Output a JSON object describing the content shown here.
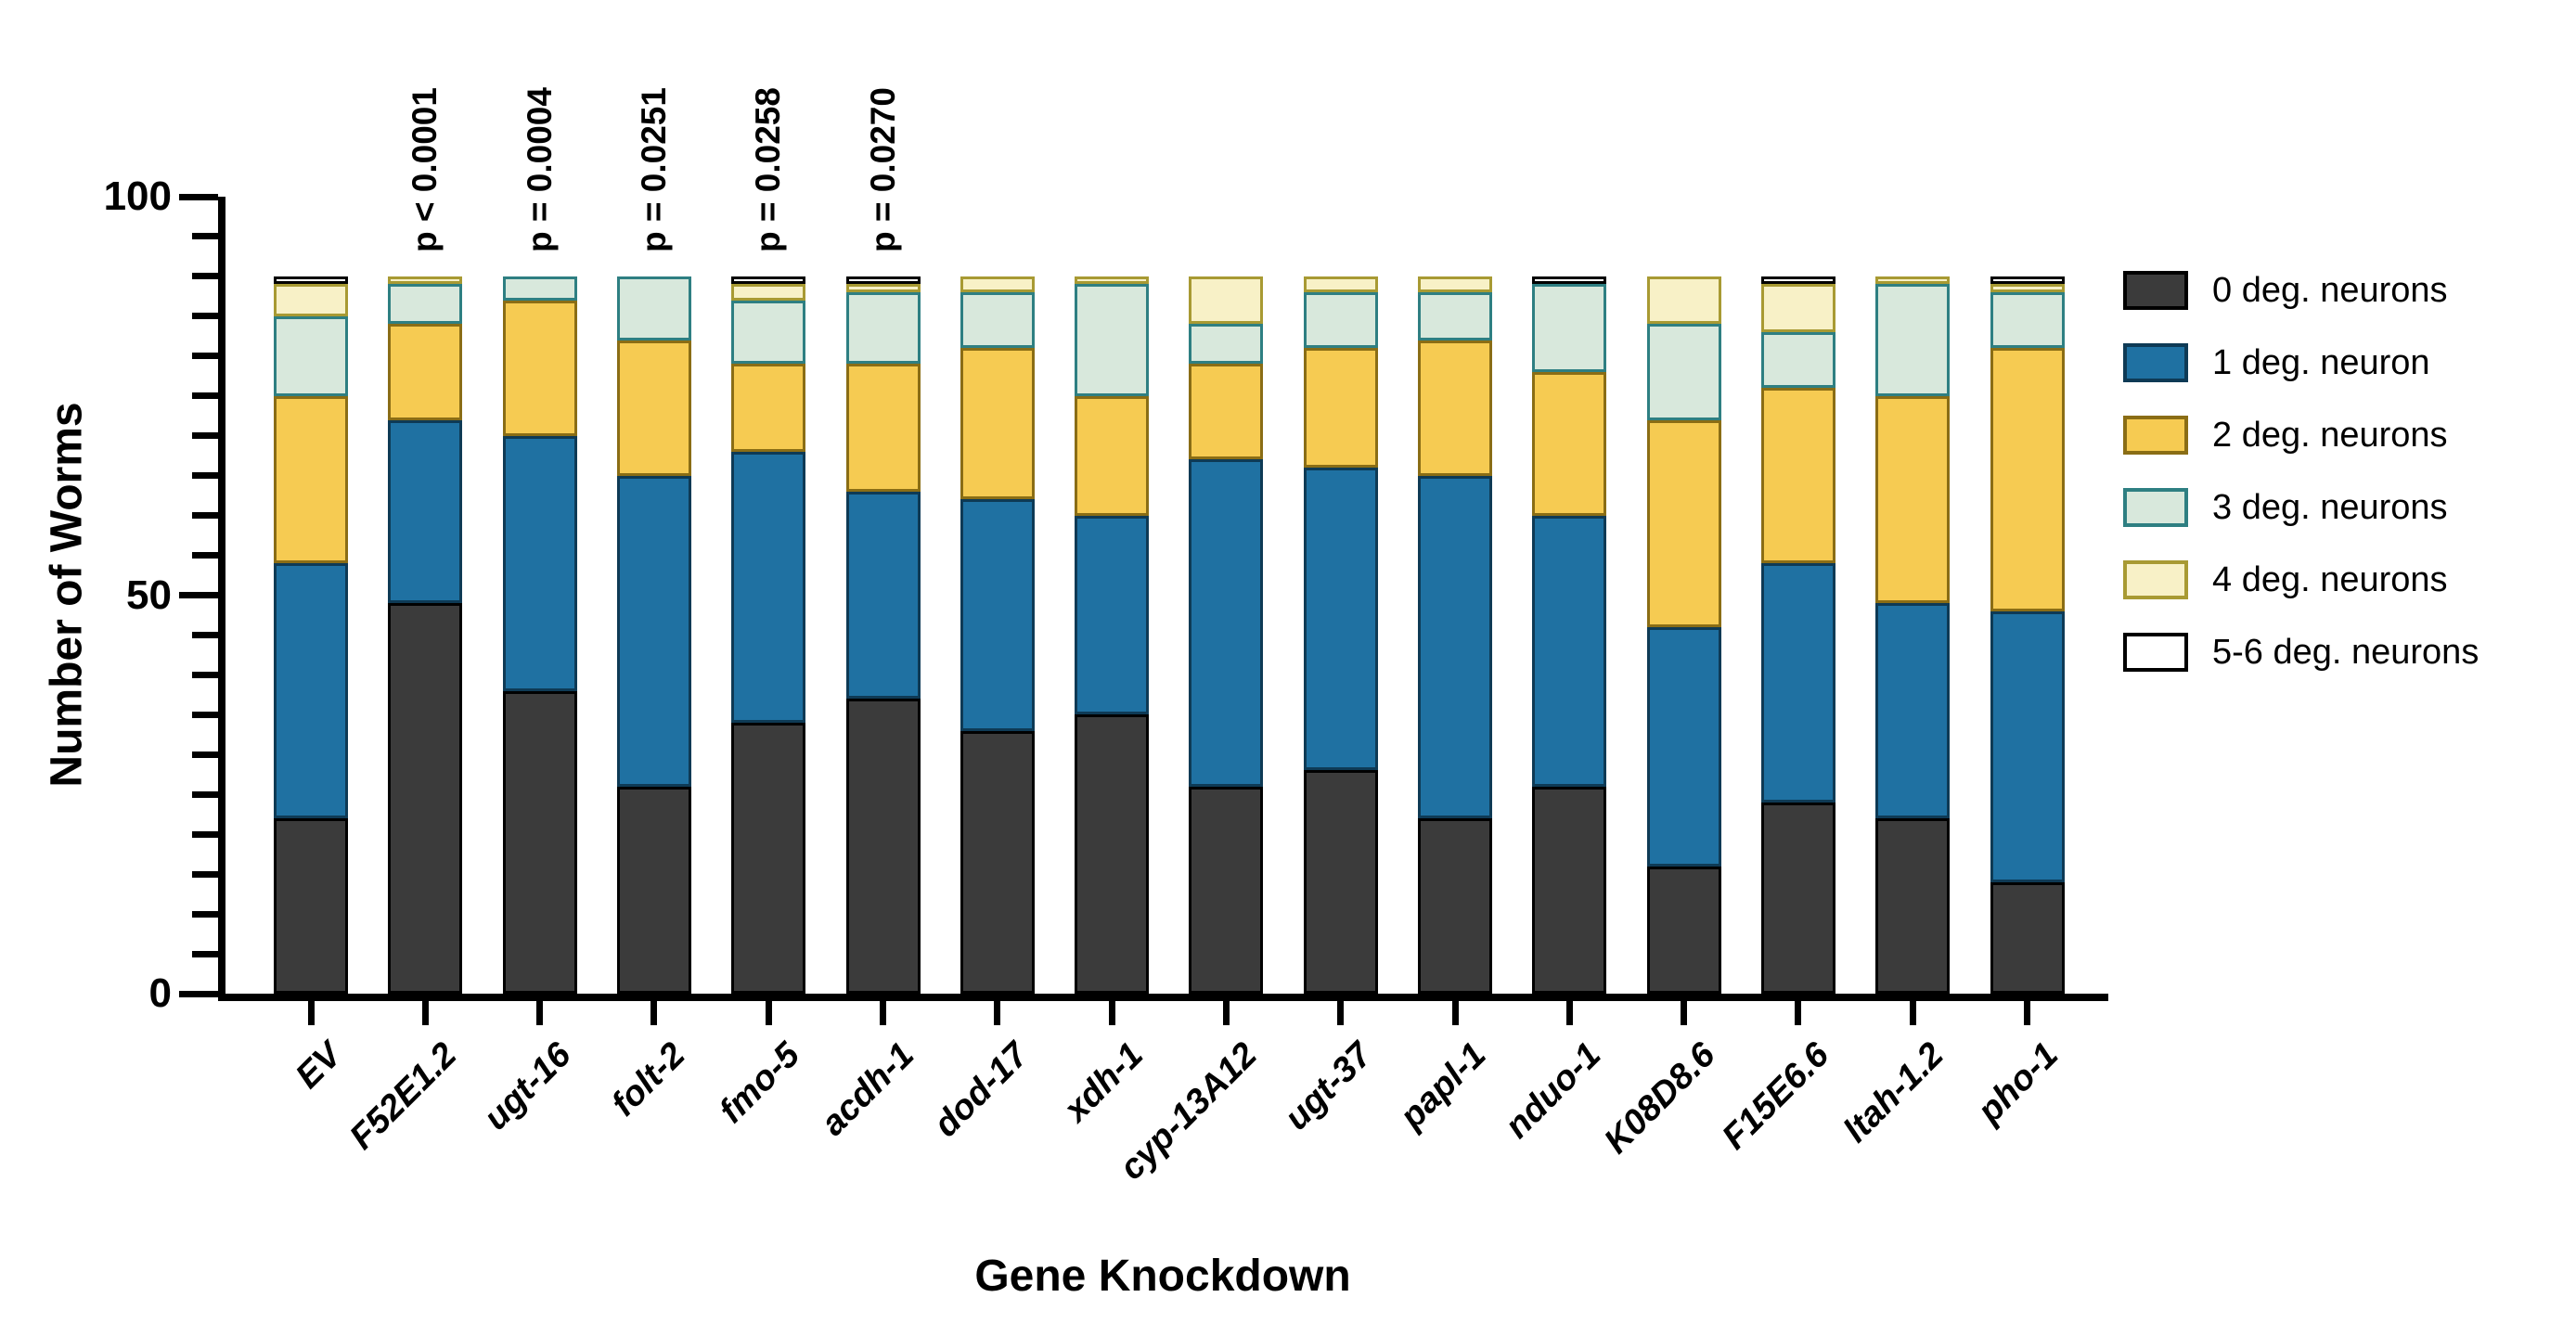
{
  "chart_data": {
    "type": "bar",
    "stacked": true,
    "title": "",
    "xlabel": "Gene Knockdown",
    "ylabel": "Number of Worms",
    "ylim": [
      0,
      100
    ],
    "ytick_labels": [
      0,
      50,
      100
    ],
    "ytick_minor_step": 5,
    "grid": false,
    "legend_position": "right",
    "bar_total": 90,
    "categories": [
      "EV",
      "F52E1.2",
      "ugt-16",
      "folt-2",
      "fmo-5",
      "acdh-1",
      "dod-17",
      "xdh-1",
      "cyp-13A12",
      "ugt-37",
      "papl-1",
      "nduo-1",
      "K08D8.6",
      "F15E6.6",
      "ltah-1.2",
      "pho-1"
    ],
    "series": [
      {
        "name": "0 deg. neurons",
        "fill": "#3b3b3b",
        "border": "#000000",
        "values": [
          22,
          49,
          38,
          26,
          34,
          37,
          33,
          35,
          26,
          28,
          22,
          26,
          16,
          24,
          22,
          14
        ]
      },
      {
        "name": "1 deg. neuron",
        "fill": "#1f71a2",
        "border": "#0e3a55",
        "values": [
          32,
          23,
          32,
          39,
          34,
          26,
          29,
          25,
          41,
          38,
          43,
          34,
          30,
          30,
          27,
          34
        ]
      },
      {
        "name": "2 deg. neurons",
        "fill": "#f6cb52",
        "border": "#8a6d15",
        "values": [
          21,
          12,
          17,
          17,
          11,
          16,
          19,
          15,
          12,
          15,
          17,
          18,
          26,
          22,
          26,
          33
        ]
      },
      {
        "name": "3 deg. neurons",
        "fill": "#d8e8dc",
        "border": "#2e7f82",
        "values": [
          10,
          5,
          3,
          8,
          8,
          9,
          7,
          14,
          5,
          7,
          6,
          11,
          12,
          7,
          14,
          7
        ]
      },
      {
        "name": "4 deg. neurons",
        "fill": "#f8f1c7",
        "border": "#a89a33",
        "values": [
          4,
          1,
          0,
          0,
          2,
          1,
          2,
          1,
          6,
          2,
          2,
          0,
          6,
          6,
          1,
          1
        ]
      },
      {
        "name": "5-6 deg. neurons",
        "fill": "#ffffff",
        "border": "#000000",
        "values": [
          1,
          0,
          0,
          0,
          1,
          1,
          0,
          0,
          0,
          0,
          0,
          1,
          0,
          1,
          0,
          1
        ]
      }
    ],
    "annotations": [
      {
        "category": "F52E1.2",
        "text": "p < 0.0001"
      },
      {
        "category": "ugt-16",
        "text": "p = 0.0004"
      },
      {
        "category": "folt-2",
        "text": "p = 0.0251"
      },
      {
        "category": "fmo-5",
        "text": "p = 0.0258"
      },
      {
        "category": "acdh-1",
        "text": "p = 0.0270"
      }
    ]
  }
}
